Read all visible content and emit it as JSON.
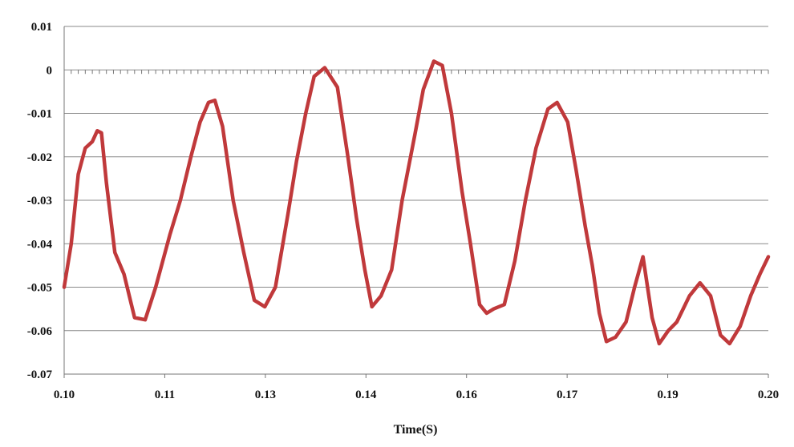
{
  "chart_data": {
    "type": "line",
    "title": "",
    "xlabel": "Time(S)",
    "ylabel": "",
    "xlim": [
      0.1,
      0.2
    ],
    "ylim": [
      -0.07,
      0.01
    ],
    "x_tick_labels": [
      "0.10",
      "0.11",
      "0.13",
      "0.14",
      "0.16",
      "0.17",
      "0.19",
      "0.20"
    ],
    "y_tick_labels": [
      "0.01",
      "0",
      "-0.01",
      "-0.02",
      "-0.03",
      "-0.04",
      "-0.05",
      "-0.06",
      "-0.07"
    ],
    "grid": "horizontal",
    "legend": "none",
    "series": [
      {
        "color": "#c0393b",
        "x": [
          0.1,
          0.101,
          0.102,
          0.103,
          0.104,
          0.1047,
          0.1053,
          0.106,
          0.1072,
          0.1085,
          0.11,
          0.1115,
          0.113,
          0.115,
          0.1165,
          0.118,
          0.1193,
          0.1205,
          0.1214,
          0.1225,
          0.124,
          0.1255,
          0.127,
          0.1285,
          0.13,
          0.1318,
          0.133,
          0.1343,
          0.1355,
          0.137,
          0.1388,
          0.1403,
          0.1415,
          0.1427,
          0.1437,
          0.145,
          0.1465,
          0.148,
          0.1498,
          0.151,
          0.1525,
          0.1537,
          0.155,
          0.1565,
          0.1577,
          0.159,
          0.16,
          0.161,
          0.1625,
          0.164,
          0.1655,
          0.167,
          0.1687,
          0.17,
          0.1715,
          0.1727,
          0.174,
          0.175,
          0.176,
          0.177,
          0.1783,
          0.1798,
          0.181,
          0.1822,
          0.1835,
          0.1845,
          0.1858,
          0.187,
          0.1888,
          0.1903,
          0.1918,
          0.1932,
          0.1945,
          0.196,
          0.1975,
          0.1988,
          0.2
        ],
        "y": [
          -0.05,
          -0.04,
          -0.024,
          -0.018,
          -0.0165,
          -0.014,
          -0.0145,
          -0.026,
          -0.042,
          -0.047,
          -0.057,
          -0.0575,
          -0.05,
          -0.038,
          -0.03,
          -0.02,
          -0.012,
          -0.0075,
          -0.007,
          -0.013,
          -0.03,
          -0.042,
          -0.053,
          -0.0545,
          -0.05,
          -0.033,
          -0.021,
          -0.01,
          -0.0015,
          0.0005,
          -0.004,
          -0.02,
          -0.034,
          -0.046,
          -0.0545,
          -0.052,
          -0.046,
          -0.03,
          -0.015,
          -0.0045,
          0.002,
          0.001,
          -0.01,
          -0.028,
          -0.04,
          -0.054,
          -0.056,
          -0.055,
          -0.054,
          -0.044,
          -0.03,
          -0.018,
          -0.009,
          -0.0075,
          -0.012,
          -0.023,
          -0.036,
          -0.045,
          -0.056,
          -0.0625,
          -0.0615,
          -0.058,
          -0.05,
          -0.043,
          -0.057,
          -0.063,
          -0.06,
          -0.058,
          -0.052,
          -0.049,
          -0.052,
          -0.061,
          -0.063,
          -0.059,
          -0.052,
          -0.047,
          -0.043
        ]
      }
    ]
  }
}
